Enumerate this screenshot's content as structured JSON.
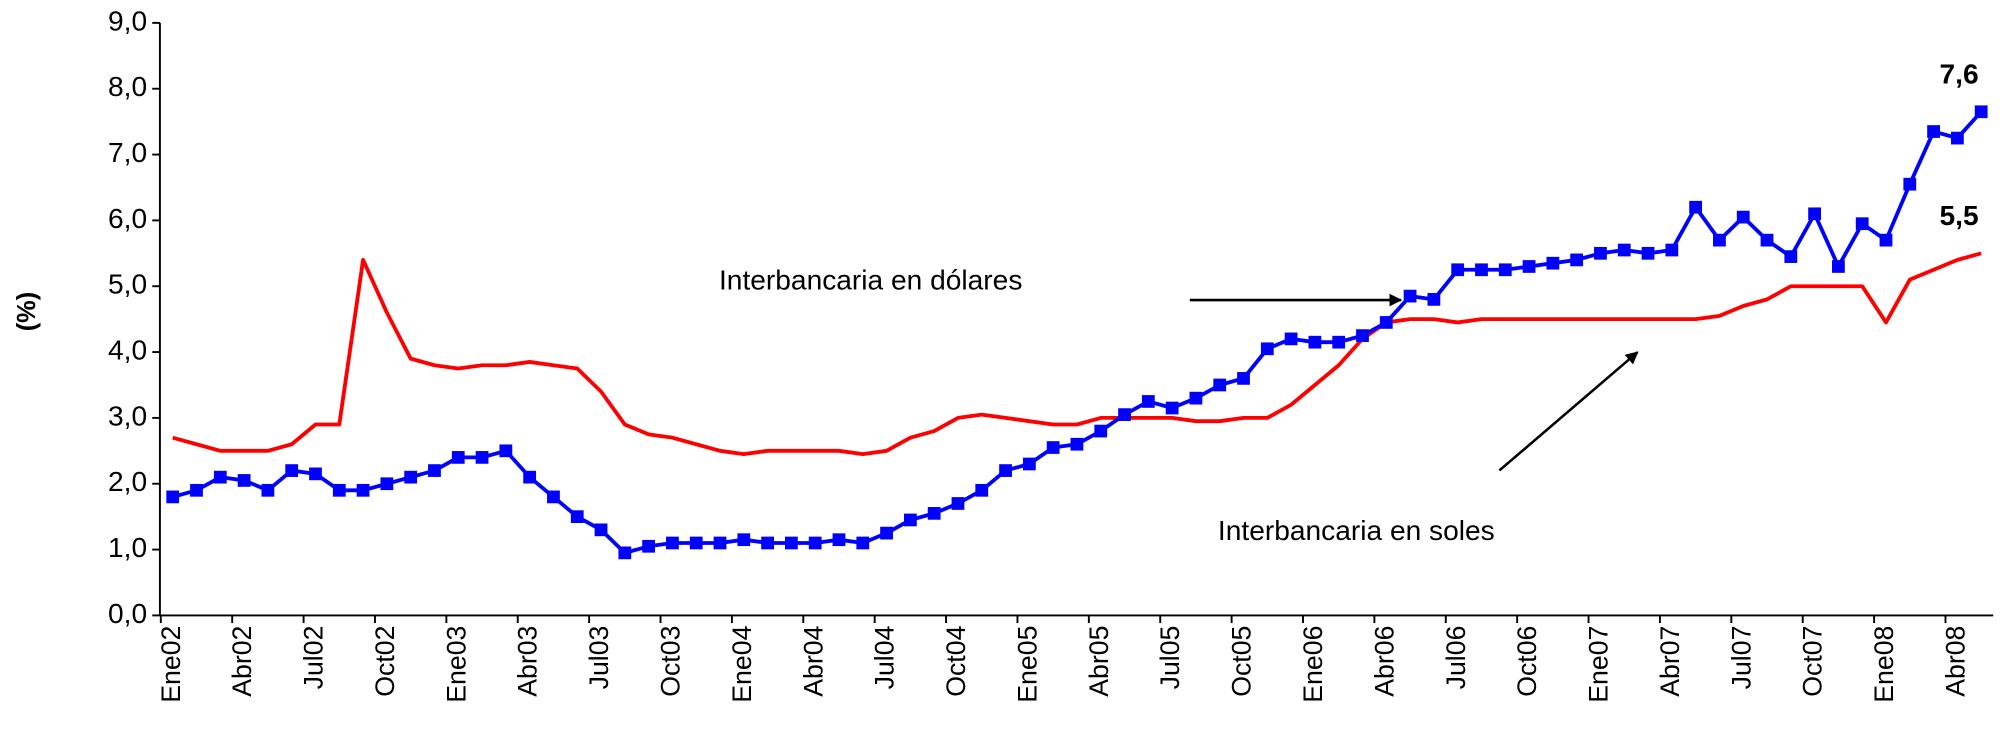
{
  "chart_data": {
    "type": "line",
    "ylabel": "(%)",
    "categories": [
      "Ene02",
      null,
      null,
      "Abr02",
      null,
      null,
      "Jul02",
      null,
      null,
      "Oct02",
      null,
      null,
      "Ene03",
      null,
      null,
      "Abr03",
      null,
      null,
      "Jul03",
      null,
      null,
      "Oct03",
      null,
      null,
      "Ene04",
      null,
      null,
      "Abr04",
      null,
      null,
      "Jul04",
      null,
      null,
      "Oct04",
      null,
      null,
      "Ene05",
      null,
      null,
      "Abr05",
      null,
      null,
      "Jul05",
      null,
      null,
      "Oct05",
      null,
      null,
      "Ene06",
      null,
      null,
      "Abr06",
      null,
      null,
      "Jul06",
      null,
      null,
      "Oct06",
      null,
      null,
      "Ene07",
      null,
      null,
      "Abr07",
      null,
      null,
      "Jul07",
      null,
      null,
      "Oct07",
      null,
      null,
      "Ene08",
      null,
      null,
      "Abr08",
      null
    ],
    "series": [
      {
        "name": "Interbancaria en dólares",
        "color": "#0000ff",
        "markers": true,
        "values": [
          1.8,
          1.9,
          2.1,
          2.05,
          1.9,
          2.2,
          2.15,
          1.9,
          1.9,
          2.0,
          2.1,
          2.2,
          2.4,
          2.4,
          2.5,
          2.1,
          1.8,
          1.5,
          1.3,
          0.95,
          1.05,
          1.1,
          1.1,
          1.1,
          1.15,
          1.1,
          1.1,
          1.1,
          1.15,
          1.1,
          1.25,
          1.45,
          1.55,
          1.7,
          1.9,
          2.2,
          2.3,
          2.55,
          2.6,
          2.8,
          3.05,
          3.25,
          3.15,
          3.3,
          3.5,
          3.6,
          4.05,
          4.2,
          4.15,
          4.15,
          4.25,
          4.45,
          4.85,
          4.8,
          5.25,
          5.25,
          5.25,
          5.3,
          5.35,
          5.4,
          5.5,
          5.55,
          5.5,
          5.55,
          6.2,
          5.7,
          6.05,
          5.7,
          5.45,
          6.1,
          5.3,
          5.95,
          5.7,
          6.55,
          7.35,
          7.25,
          7.65
        ],
        "value_labels": [
          null,
          null,
          null,
          null,
          null,
          null,
          null,
          null,
          null,
          null,
          null,
          null,
          null,
          null,
          null,
          null,
          null,
          null,
          null,
          null,
          null,
          null,
          null,
          null,
          null,
          null,
          null,
          null,
          null,
          null,
          null,
          null,
          null,
          null,
          null,
          null,
          null,
          null,
          null,
          null,
          null,
          null,
          null,
          null,
          null,
          null,
          null,
          null,
          null,
          null,
          null,
          null,
          null,
          null,
          null,
          null,
          null,
          null,
          null,
          null,
          null,
          null,
          null,
          null,
          null,
          null,
          null,
          null,
          null,
          null,
          null,
          null,
          null,
          null,
          null,
          null,
          "7,6"
        ]
      },
      {
        "name": "Interbancaria en soles",
        "color": "#ff0000",
        "markers": false,
        "values": [
          2.7,
          2.6,
          2.5,
          2.5,
          2.5,
          2.6,
          2.9,
          2.9,
          5.4,
          4.6,
          3.9,
          3.8,
          3.75,
          3.8,
          3.8,
          3.85,
          3.8,
          3.75,
          3.4,
          2.9,
          2.75,
          2.7,
          2.6,
          2.5,
          2.45,
          2.5,
          2.5,
          2.5,
          2.5,
          2.45,
          2.5,
          2.7,
          2.8,
          3.0,
          3.05,
          3.0,
          2.95,
          2.9,
          2.9,
          3.0,
          3.0,
          3.0,
          3.0,
          2.95,
          2.95,
          3.0,
          3.0,
          3.2,
          3.5,
          3.8,
          4.2,
          4.45,
          4.5,
          4.5,
          4.45,
          4.5,
          4.5,
          4.5,
          4.5,
          4.5,
          4.5,
          4.5,
          4.5,
          4.5,
          4.5,
          4.55,
          4.7,
          4.8,
          5.0,
          5.0,
          5.0,
          5.0,
          4.45,
          5.1,
          5.25,
          5.4,
          5.5
        ],
        "value_labels": [
          null,
          null,
          null,
          null,
          null,
          null,
          null,
          null,
          null,
          null,
          null,
          null,
          null,
          null,
          null,
          null,
          null,
          null,
          null,
          null,
          null,
          null,
          null,
          null,
          null,
          null,
          null,
          null,
          null,
          null,
          null,
          null,
          null,
          null,
          null,
          null,
          null,
          null,
          null,
          null,
          null,
          null,
          null,
          null,
          null,
          null,
          null,
          null,
          null,
          null,
          null,
          null,
          null,
          null,
          null,
          null,
          null,
          null,
          null,
          null,
          null,
          null,
          null,
          null,
          null,
          null,
          null,
          null,
          null,
          null,
          null,
          null,
          null,
          null,
          null,
          null,
          "5,5"
        ]
      }
    ],
    "ylim": [
      0,
      9
    ],
    "yticks": [
      {
        "value": 0,
        "label": "0,0"
      },
      {
        "value": 1,
        "label": "1,0"
      },
      {
        "value": 2,
        "label": "2,0"
      },
      {
        "value": 3,
        "label": "3,0"
      },
      {
        "value": 4,
        "label": "4,0"
      },
      {
        "value": 5,
        "label": "5,0"
      },
      {
        "value": 6,
        "label": "6,0"
      },
      {
        "value": 7,
        "label": "7,0"
      },
      {
        "value": 8,
        "label": "8,0"
      },
      {
        "value": 9,
        "label": "9,0"
      }
    ],
    "grid": false
  }
}
